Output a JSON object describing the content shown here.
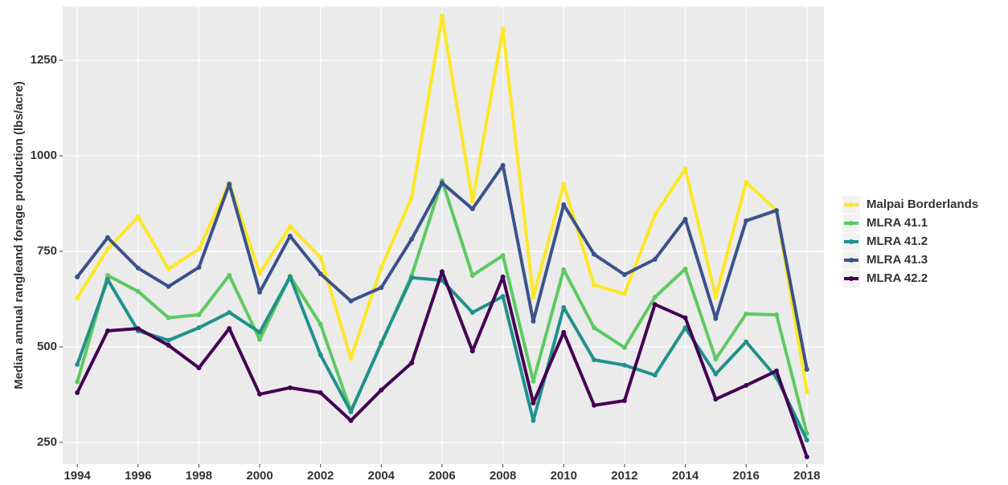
{
  "chart_data": {
    "type": "line",
    "ylabel": "Median annual rangleand forage production (lbs/acre)",
    "x": [
      1994,
      1995,
      1996,
      1997,
      1998,
      1999,
      2000,
      2001,
      2002,
      2003,
      2004,
      2005,
      2006,
      2007,
      2008,
      2009,
      2010,
      2011,
      2012,
      2013,
      2014,
      2015,
      2016,
      2017,
      2018
    ],
    "series": [
      {
        "name": "Malpai Borderlands",
        "color": "#fde725",
        "values": [
          628,
          756,
          840,
          704,
          756,
          929,
          693,
          815,
          735,
          470,
          708,
          891,
          1366,
          882,
          1332,
          630,
          926,
          662,
          639,
          845,
          966,
          630,
          931,
          857,
          382
        ]
      },
      {
        "name": "MLRA 41.1",
        "color": "#5ec962",
        "values": [
          408,
          687,
          645,
          576,
          584,
          687,
          519,
          685,
          559,
          332,
          508,
          687,
          935,
          687,
          739,
          410,
          702,
          550,
          498,
          630,
          704,
          468,
          586,
          584,
          273
        ]
      },
      {
        "name": "MLRA 41.2",
        "color": "#21918c",
        "values": [
          454,
          676,
          542,
          517,
          550,
          590,
          538,
          683,
          479,
          330,
          510,
          681,
          674,
          590,
          632,
          307,
          603,
          466,
          452,
          426,
          550,
          429,
          513,
          420,
          256
        ]
      },
      {
        "name": "MLRA 41.3",
        "color": "#3b528b",
        "values": [
          683,
          786,
          706,
          658,
          708,
          926,
          643,
          790,
          691,
          620,
          655,
          782,
          929,
          861,
          975,
          567,
          872,
          742,
          689,
          729,
          834,
          574,
          830,
          857,
          441
        ]
      },
      {
        "name": "MLRA 42.2",
        "color": "#440154",
        "values": [
          380,
          542,
          548,
          504,
          445,
          548,
          376,
          393,
          380,
          307,
          387,
          458,
          697,
          489,
          683,
          353,
          538,
          347,
          359,
          611,
          576,
          363,
          399,
          437,
          212
        ]
      }
    ],
    "xlim": [
      1993.52,
      2018.56
    ],
    "ylim": [
      193,
      1391
    ],
    "xticks": [
      1994,
      1996,
      1998,
      2000,
      2002,
      2004,
      2006,
      2008,
      2010,
      2012,
      2014,
      2016,
      2018
    ],
    "yticks": [
      250,
      500,
      750,
      1000,
      1250
    ],
    "grid": true,
    "legend": "right"
  }
}
